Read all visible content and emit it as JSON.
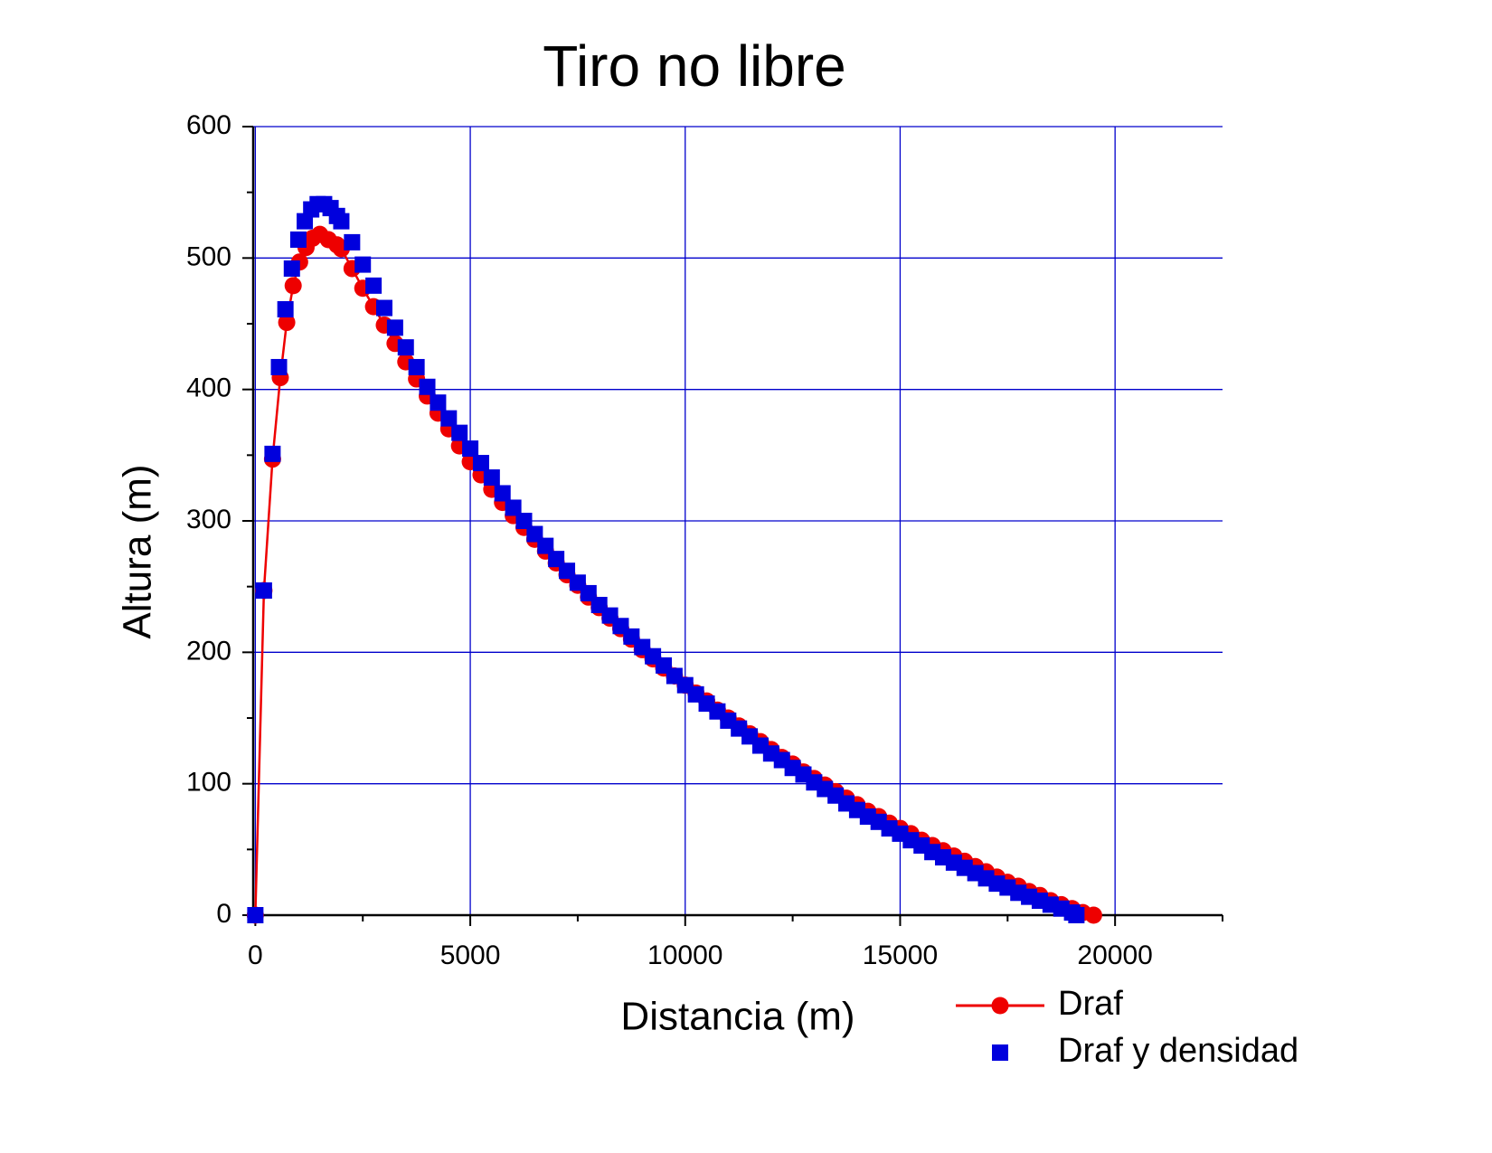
{
  "chart_data": {
    "type": "scatter",
    "title": "Tiro no libre",
    "x_label": "Distancia (m)",
    "y_label": "Altura (m)",
    "xlim": [
      -50,
      22500
    ],
    "xticks": [
      0,
      5000,
      10000,
      15000,
      20000
    ],
    "ylim": [
      0,
      600
    ],
    "yticks": [
      0,
      100,
      200,
      300,
      400,
      500,
      600
    ],
    "grid": true,
    "grid_color": "#0000cc",
    "legend": "lower right",
    "series": [
      {
        "name": "Draf",
        "color": "#ee0000",
        "marker": "circle",
        "line": true,
        "x": [
          0,
          200,
          400,
          580,
          730,
          880,
          1030,
          1180,
          1330,
          1500,
          1700,
          1900,
          2000,
          2250,
          2500,
          2750,
          3000,
          3250,
          3500,
          3750,
          4000,
          4250,
          4500,
          4750,
          5000,
          5250,
          5500,
          5750,
          6000,
          6250,
          6500,
          6750,
          7000,
          7250,
          7500,
          7750,
          8000,
          8250,
          8500,
          8750,
          9000,
          9250,
          9500,
          9750,
          10000,
          10250,
          10500,
          10750,
          11000,
          11250,
          11500,
          11750,
          12000,
          12250,
          12500,
          12750,
          13000,
          13250,
          13500,
          13750,
          14000,
          14250,
          14500,
          14750,
          15000,
          15250,
          15500,
          15750,
          16000,
          16250,
          16500,
          16750,
          17000,
          17250,
          17500,
          17750,
          18000,
          18250,
          18500,
          18750,
          19000,
          19250,
          19500
        ],
        "values": [
          0,
          247,
          347,
          409,
          451,
          479,
          497,
          508,
          515,
          518,
          514,
          510,
          507,
          492,
          477,
          463,
          449,
          435,
          421,
          408,
          395,
          382,
          370,
          357,
          345,
          335,
          324,
          314,
          304,
          295,
          286,
          277,
          268,
          259,
          251,
          242,
          234,
          226,
          218,
          210,
          202,
          195,
          188,
          182,
          175,
          169,
          163,
          156,
          150,
          144,
          138,
          132,
          126,
          120,
          115,
          109,
          104,
          99,
          94,
          89,
          84,
          79,
          75,
          70,
          66,
          62,
          57,
          53,
          49,
          45,
          41,
          37,
          33,
          29,
          25,
          22,
          18,
          15,
          11,
          8,
          5,
          2,
          0
        ]
      },
      {
        "name": "Draf y densidad",
        "color": "#0000dd",
        "marker": "square",
        "line": false,
        "x": [
          0,
          200,
          400,
          550,
          700,
          850,
          1000,
          1150,
          1300,
          1450,
          1600,
          1750,
          1900,
          2000,
          2250,
          2500,
          2750,
          3000,
          3250,
          3500,
          3750,
          4000,
          4250,
          4500,
          4750,
          5000,
          5250,
          5500,
          5750,
          6000,
          6250,
          6500,
          6750,
          7000,
          7250,
          7500,
          7750,
          8000,
          8250,
          8500,
          8750,
          9000,
          9250,
          9500,
          9750,
          10000,
          10250,
          10500,
          10750,
          11000,
          11250,
          11500,
          11750,
          12000,
          12250,
          12500,
          12750,
          13000,
          13250,
          13500,
          13750,
          14000,
          14250,
          14500,
          14750,
          15000,
          15250,
          15500,
          15750,
          16000,
          16250,
          16500,
          16750,
          17000,
          17250,
          17500,
          17750,
          18000,
          18250,
          18500,
          18750,
          19000,
          19100
        ],
        "values": [
          0,
          247,
          351,
          417,
          461,
          492,
          514,
          528,
          537,
          541,
          541,
          538,
          532,
          528,
          512,
          495,
          479,
          462,
          447,
          432,
          417,
          402,
          390,
          378,
          367,
          355,
          344,
          333,
          321,
          310,
          300,
          290,
          281,
          271,
          262,
          253,
          245,
          236,
          228,
          220,
          212,
          204,
          197,
          190,
          182,
          175,
          168,
          161,
          155,
          148,
          142,
          136,
          129,
          123,
          118,
          112,
          107,
          101,
          96,
          91,
          85,
          80,
          75,
          71,
          66,
          62,
          57,
          53,
          48,
          44,
          40,
          36,
          32,
          28,
          24,
          21,
          17,
          14,
          11,
          8,
          5,
          2,
          0
        ]
      }
    ]
  }
}
